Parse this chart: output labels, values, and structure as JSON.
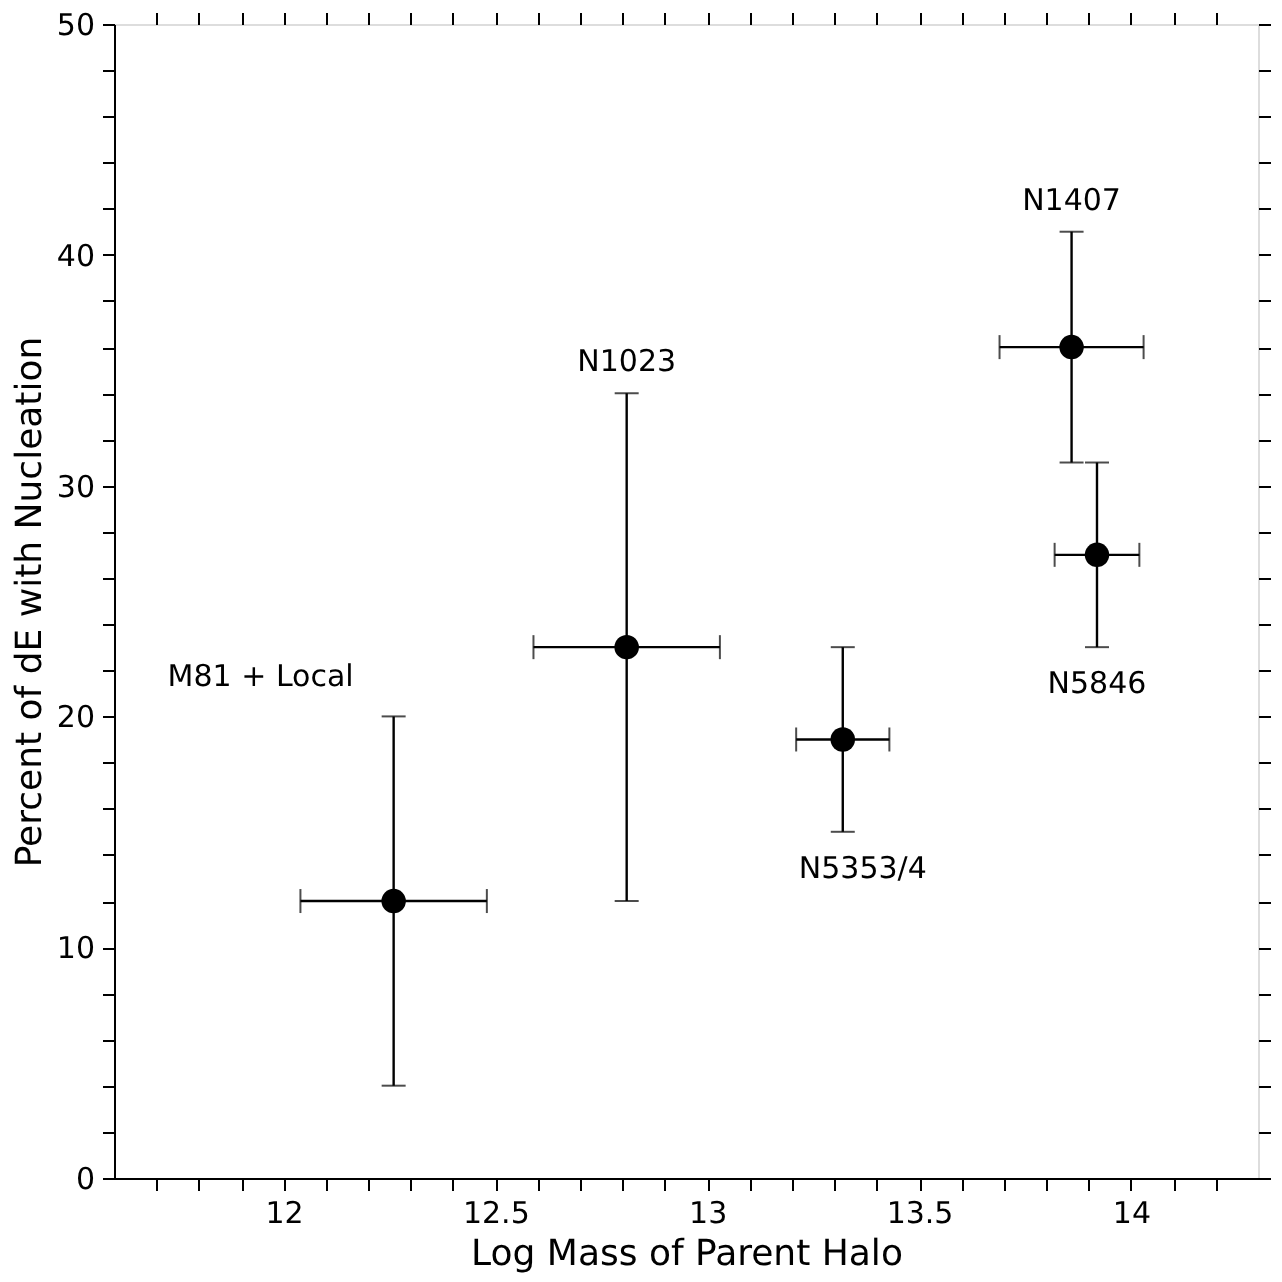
{
  "chart_data": {
    "type": "scatter",
    "xlabel": "Log Mass of Parent Halo",
    "ylabel": "Percent of dE with Nucleation",
    "x": [
      12.26,
      12.81,
      13.32,
      13.86,
      13.92
    ],
    "series": [
      {
        "color": "#000000",
        "values": [
          12,
          23,
          19,
          36,
          27
        ],
        "errors": [
          [
            4,
            20
          ],
          [
            12,
            34
          ],
          [
            15,
            23
          ],
          [
            31,
            41
          ],
          [
            23,
            31
          ]
        ],
        "xerrors": [
          [
            12.04,
            12.48
          ],
          [
            12.59,
            13.03
          ],
          [
            13.21,
            13.43
          ],
          [
            13.69,
            14.03
          ],
          [
            13.82,
            14.02
          ]
        ]
      }
    ],
    "marker": "circle",
    "xlim": [
      11.6,
      14.3
    ],
    "xticks": [
      {
        "value": 11.7,
        "label": null
      },
      {
        "value": 11.8,
        "label": null
      },
      {
        "value": 11.9,
        "label": null
      },
      12,
      {
        "value": 12.1,
        "label": null
      },
      {
        "value": 12.2,
        "label": null
      },
      {
        "value": 12.3,
        "label": null
      },
      {
        "value": 12.4,
        "label": null
      },
      12.5,
      {
        "value": 12.6,
        "label": null
      },
      {
        "value": 12.7,
        "label": null
      },
      {
        "value": 12.8,
        "label": null
      },
      {
        "value": 12.9,
        "label": null
      },
      13,
      {
        "value": 13.1,
        "label": null
      },
      {
        "value": 13.2,
        "label": null
      },
      {
        "value": 13.3,
        "label": null
      },
      {
        "value": 13.4,
        "label": null
      },
      13.5,
      {
        "value": 13.6,
        "label": null
      },
      {
        "value": 13.7,
        "label": null
      },
      {
        "value": 13.8,
        "label": null
      },
      {
        "value": 13.9,
        "label": null
      },
      14,
      {
        "value": 14.1,
        "label": null
      },
      {
        "value": 14.2,
        "label": null
      }
    ],
    "ylim": [
      0,
      50
    ],
    "yticks": [
      0,
      {
        "value": 2,
        "label": null
      },
      {
        "value": 4,
        "label": null
      },
      {
        "value": 6,
        "label": null
      },
      {
        "value": 8,
        "label": null
      },
      10,
      {
        "value": 12,
        "label": null
      },
      {
        "value": 14,
        "label": null
      },
      {
        "value": 16,
        "label": null
      },
      {
        "value": 18,
        "label": null
      },
      20,
      {
        "value": 22,
        "label": null
      },
      {
        "value": 24,
        "label": null
      },
      {
        "value": 26,
        "label": null
      },
      {
        "value": 28,
        "label": null
      },
      30,
      {
        "value": 32,
        "label": null
      },
      {
        "value": 34,
        "label": null
      },
      {
        "value": 36,
        "label": null
      },
      {
        "value": 38,
        "label": null
      },
      40,
      {
        "value": 42,
        "label": null
      },
      {
        "value": 44,
        "label": null
      },
      {
        "value": 46,
        "label": null
      },
      {
        "value": 48,
        "label": null
      },
      50
    ],
    "annotations": [
      "M81 + Local",
      "N1023",
      "N5353/4",
      "N1407",
      "N5846"
    ],
    "grid": false
  }
}
